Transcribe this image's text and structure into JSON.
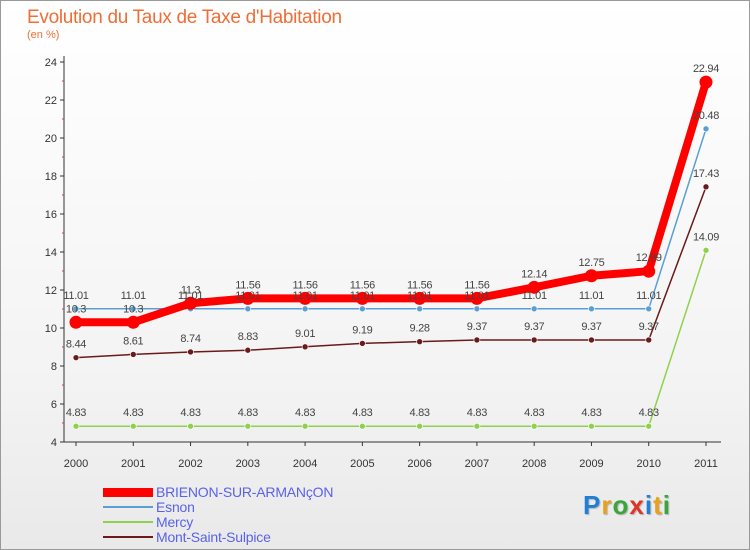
{
  "chart_data": {
    "type": "line",
    "title": "Evolution du Taux de Taxe d'Habitation",
    "subtitle": "(en %)",
    "xlabel": "",
    "ylabel": "(en %)",
    "ylim": [
      4,
      24
    ],
    "y_ticks": [
      "4",
      "6",
      "8",
      "10",
      "12",
      "14",
      "16",
      "18",
      "20",
      "22",
      "24"
    ],
    "grid": false,
    "legend_position": "bottom-left",
    "categories": [
      "2000",
      "2001",
      "2002",
      "2003",
      "2004",
      "2005",
      "2006",
      "2007",
      "2008",
      "2009",
      "2010",
      "2011"
    ],
    "series": [
      {
        "name": "BRIENON-SUR-ARMANçON",
        "color": "#ff0000",
        "values": [
          10.3,
          10.3,
          11.3,
          11.56,
          11.56,
          11.56,
          11.56,
          11.56,
          12.14,
          12.75,
          12.99,
          22.94
        ],
        "labels": [
          "10.3",
          "10.3",
          "11.3",
          "11.56",
          "11.56",
          "11.56",
          "11.56",
          "11.56",
          "12.14",
          "12.75",
          "12.99",
          "22.94"
        ]
      },
      {
        "name": "Esnon",
        "color": "#5a9fd4",
        "values": [
          11.01,
          11.01,
          11.01,
          11.01,
          11.01,
          11.01,
          11.01,
          11.01,
          11.01,
          11.01,
          11.01,
          20.48
        ],
        "labels": [
          "11.01",
          "11.01",
          "11.01",
          "11.01",
          "11.01",
          "11.01",
          "11.01",
          "11.01",
          "11.01",
          "11.01",
          "11.01",
          "20.48"
        ]
      },
      {
        "name": "Mercy",
        "color": "#8fd14f",
        "values": [
          4.83,
          4.83,
          4.83,
          4.83,
          4.83,
          4.83,
          4.83,
          4.83,
          4.83,
          4.83,
          4.83,
          14.09
        ],
        "labels": [
          "4.83",
          "4.83",
          "4.83",
          "4.83",
          "4.83",
          "4.83",
          "4.83",
          "4.83",
          "4.83",
          "4.83",
          "4.83",
          "14.09"
        ]
      },
      {
        "name": "Mont-Saint-Sulpice",
        "color": "#6a1a1a",
        "values": [
          8.44,
          8.61,
          8.74,
          8.83,
          9.01,
          9.19,
          9.28,
          9.37,
          9.37,
          9.37,
          9.37,
          17.43
        ],
        "labels": [
          "8.44",
          "8.61",
          "8.74",
          "8.83",
          "9.01",
          "9.19",
          "9.28",
          "9.37",
          "9.37",
          "9.37",
          "9.37",
          "17.43"
        ]
      }
    ]
  },
  "branding": {
    "letters": [
      "P",
      "r",
      "o",
      "x",
      "i",
      "t",
      "i"
    ],
    "colors": [
      "#1f7fd6",
      "#e8a11a",
      "#3aa63a",
      "#e0342a",
      "#1f7fd6",
      "#e8a11a",
      "#3aa63a"
    ]
  }
}
